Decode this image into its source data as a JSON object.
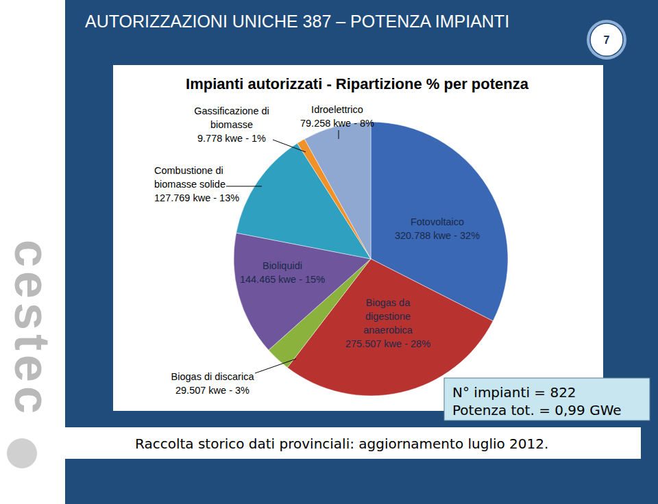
{
  "slide": {
    "title": "AUTORIZZAZIONI UNICHE 387 – POTENZA IMPIANTI",
    "page_number": "7",
    "logo": "cestec",
    "info": [
      "N° impianti = 822",
      "Potenza tot. = 0,99 GWe"
    ],
    "footer": "Raccolta storico dati provinciali: aggiornamento luglio 2012."
  },
  "chart_data": {
    "type": "pie",
    "title": "Impianti autorizzati - Ripartizione % per potenza",
    "categories": [
      "Fotovoltaico",
      "Biogas da digestione anaerobica",
      "Biogas di discarica",
      "Bioliquidi",
      "Combustione di biomasse solide",
      "Gassificazione di biomasse",
      "Idroelettrico"
    ],
    "values": [
      320788,
      275507,
      29507,
      144465,
      127769,
      9778,
      79258
    ],
    "value_labels": [
      "320.788 kwe - 32%",
      "275.507 kwe - 28%",
      "29.507 kwe - 3%",
      "144.465 kwe - 15%",
      "127.769 kwe - 13%",
      "9.778 kwe - 1%",
      "79.258 kwe - 8%"
    ],
    "colors": [
      "#3a68b4",
      "#b83330",
      "#8bb23c",
      "#6e559c",
      "#2fa0bf",
      "#f0912a",
      "#8ea8d2"
    ],
    "data_labels": true
  }
}
